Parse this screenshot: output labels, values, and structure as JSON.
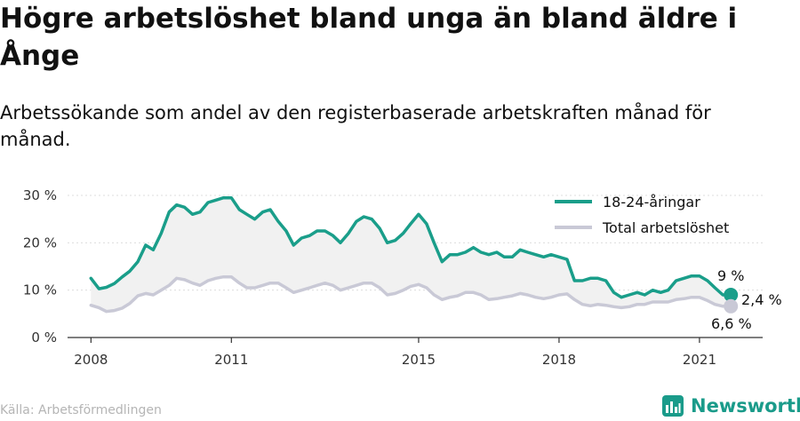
{
  "header": {
    "title": "Högre arbetslöshet bland unga än bland äldre i Ånge",
    "subtitle": "Arbetssökande som andel av den registerbaserade arbetskraften månad för månad."
  },
  "colors": {
    "youth": "#1a9e8a",
    "total": "#c9c9d6",
    "band": "#f1f1f1",
    "grid": "#dddddd"
  },
  "chart_data": {
    "type": "line",
    "x_unit": "year",
    "x_ticks": [
      {
        "value": 2008,
        "label": "2008"
      },
      {
        "value": 2011,
        "label": "2011"
      },
      {
        "value": 2015,
        "label": "2015"
      },
      {
        "value": 2018,
        "label": "2018"
      },
      {
        "value": 2021,
        "label": "2021"
      }
    ],
    "y_ticks": [
      {
        "value": 0,
        "label": "0 %"
      },
      {
        "value": 10,
        "label": "10 %"
      },
      {
        "value": 20,
        "label": "20 %"
      },
      {
        "value": 30,
        "label": "30 %"
      }
    ],
    "xlim": [
      2007.5,
      2022.35
    ],
    "ylim": [
      0,
      30
    ],
    "grid": true,
    "legend_position": "top-right",
    "series": [
      {
        "name": "18-24-åringar",
        "end_label": "9 %",
        "x": [
          2008.0,
          2008.17,
          2008.33,
          2008.5,
          2008.67,
          2008.83,
          2009.0,
          2009.17,
          2009.33,
          2009.5,
          2009.67,
          2009.83,
          2010.0,
          2010.17,
          2010.33,
          2010.5,
          2010.67,
          2010.83,
          2011.0,
          2011.17,
          2011.33,
          2011.5,
          2011.67,
          2011.83,
          2012.0,
          2012.17,
          2012.33,
          2012.5,
          2012.67,
          2012.83,
          2013.0,
          2013.17,
          2013.33,
          2013.5,
          2013.67,
          2013.83,
          2014.0,
          2014.17,
          2014.33,
          2014.5,
          2014.67,
          2014.83,
          2015.0,
          2015.17,
          2015.33,
          2015.5,
          2015.67,
          2015.83,
          2016.0,
          2016.17,
          2016.33,
          2016.5,
          2016.67,
          2016.83,
          2017.0,
          2017.17,
          2017.33,
          2017.5,
          2017.67,
          2017.83,
          2018.0,
          2018.17,
          2018.33,
          2018.5,
          2018.67,
          2018.83,
          2019.0,
          2019.17,
          2019.33,
          2019.5,
          2019.67,
          2019.83,
          2020.0,
          2020.17,
          2020.33,
          2020.5,
          2020.67,
          2020.83,
          2021.0,
          2021.17,
          2021.33,
          2021.5,
          2021.67
        ],
        "y": [
          12.5,
          10.3,
          10.6,
          11.4,
          12.8,
          14.0,
          16.0,
          19.5,
          18.5,
          22.0,
          26.5,
          28.0,
          27.5,
          26.0,
          26.5,
          28.5,
          29.0,
          29.5,
          29.5,
          27.0,
          26.0,
          25.0,
          26.5,
          27.0,
          24.5,
          22.5,
          19.5,
          21.0,
          21.5,
          22.5,
          22.5,
          21.5,
          20.0,
          22.0,
          24.5,
          25.5,
          25.0,
          23.0,
          20.0,
          20.5,
          22.0,
          24.0,
          26.0,
          24.0,
          20.0,
          16.0,
          17.5,
          17.5,
          18.0,
          19.0,
          18.0,
          17.5,
          18.0,
          17.0,
          17.0,
          18.5,
          18.0,
          17.5,
          17.0,
          17.5,
          17.0,
          16.5,
          12.0,
          12.0,
          12.5,
          12.5,
          12.0,
          9.5,
          8.5,
          9.0,
          9.5,
          9.0,
          10.0,
          9.5,
          10.0,
          12.0,
          12.5,
          13.0,
          13.0,
          12.0,
          10.5,
          9.0,
          9.0
        ]
      },
      {
        "name": "Total arbetslöshet",
        "end_label": "6,6 %",
        "x": [
          2008.0,
          2008.17,
          2008.33,
          2008.5,
          2008.67,
          2008.83,
          2009.0,
          2009.17,
          2009.33,
          2009.5,
          2009.67,
          2009.83,
          2010.0,
          2010.17,
          2010.33,
          2010.5,
          2010.67,
          2010.83,
          2011.0,
          2011.17,
          2011.33,
          2011.5,
          2011.67,
          2011.83,
          2012.0,
          2012.17,
          2012.33,
          2012.5,
          2012.67,
          2012.83,
          2013.0,
          2013.17,
          2013.33,
          2013.5,
          2013.67,
          2013.83,
          2014.0,
          2014.17,
          2014.33,
          2014.5,
          2014.67,
          2014.83,
          2015.0,
          2015.17,
          2015.33,
          2015.5,
          2015.67,
          2015.83,
          2016.0,
          2016.17,
          2016.33,
          2016.5,
          2016.67,
          2016.83,
          2017.0,
          2017.17,
          2017.33,
          2017.5,
          2017.67,
          2017.83,
          2018.0,
          2018.17,
          2018.33,
          2018.5,
          2018.67,
          2018.83,
          2019.0,
          2019.17,
          2019.33,
          2019.5,
          2019.67,
          2019.83,
          2020.0,
          2020.17,
          2020.33,
          2020.5,
          2020.67,
          2020.83,
          2021.0,
          2021.17,
          2021.33,
          2021.5,
          2021.67
        ],
        "y": [
          6.8,
          6.3,
          5.5,
          5.7,
          6.2,
          7.2,
          8.8,
          9.3,
          9.0,
          10.0,
          11.0,
          12.5,
          12.2,
          11.5,
          11.0,
          12.0,
          12.5,
          12.8,
          12.8,
          11.5,
          10.5,
          10.5,
          11.0,
          11.5,
          11.5,
          10.5,
          9.5,
          10.0,
          10.5,
          11.0,
          11.5,
          11.0,
          10.0,
          10.5,
          11.0,
          11.5,
          11.5,
          10.5,
          9.0,
          9.3,
          10.0,
          10.8,
          11.2,
          10.5,
          9.0,
          8.0,
          8.5,
          8.8,
          9.5,
          9.5,
          9.0,
          8.0,
          8.2,
          8.5,
          8.8,
          9.3,
          9.0,
          8.5,
          8.2,
          8.5,
          9.0,
          9.2,
          8.0,
          7.0,
          6.7,
          7.0,
          6.8,
          6.5,
          6.3,
          6.5,
          7.0,
          7.0,
          7.5,
          7.5,
          7.5,
          8.0,
          8.2,
          8.5,
          8.5,
          7.8,
          7.0,
          6.6,
          6.6
        ]
      }
    ],
    "band_label": "2,4 %"
  },
  "source": "Källa: Arbetsförmedlingen",
  "brand": {
    "name": "Newsworthy",
    "icon": "bar-chart-logo-icon"
  }
}
